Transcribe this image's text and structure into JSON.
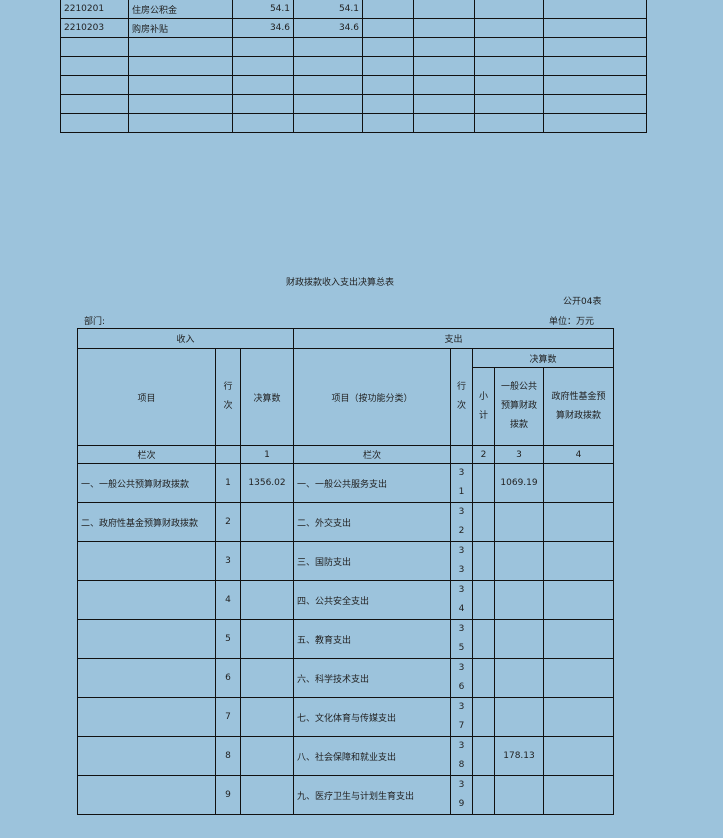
{
  "top_table": {
    "rows": [
      [
        "2210201",
        "住房公积金",
        "54.1",
        "54.1",
        "",
        "",
        "",
        ""
      ],
      [
        "2210203",
        "购房补贴",
        "34.6",
        "34.6",
        "",
        "",
        "",
        ""
      ],
      [
        "",
        "",
        "",
        "",
        "",
        "",
        "",
        ""
      ],
      [
        "",
        "",
        "",
        "",
        "",
        "",
        "",
        ""
      ],
      [
        "",
        "",
        "",
        "",
        "",
        "",
        "",
        ""
      ],
      [
        "",
        "",
        "",
        "",
        "",
        "",
        "",
        ""
      ],
      [
        "",
        "",
        "",
        "",
        "",
        "",
        "",
        ""
      ]
    ]
  },
  "report": {
    "title": "财政拨款收入支出决算总表",
    "form_no": "公开04表",
    "dept_label": "部门:",
    "unit_label": "单位：万元",
    "income_header": "收入",
    "expense_header": "支出",
    "item": "项目",
    "row_no": "行次",
    "final_amount": "决算数",
    "item_by_function": "项目（按功能分类）",
    "final_amount_group": "决算数",
    "subtotal": "小计",
    "general_budget": "一般公共预算财政拨款",
    "gov_fund": "政府性基金预算财政拨款",
    "col_label": "栏次",
    "col_1": "1",
    "col_2": "2",
    "col_3": "3",
    "col_4": "4",
    "rows": [
      {
        "income_item": "一、一般公共预算财政拨款",
        "row": "1",
        "amount": "1356.02",
        "expense_item": "一、一般公共服务支出",
        "exp_row": "31",
        "subtotal": "",
        "general": "1069.19",
        "fund": ""
      },
      {
        "income_item": "二、政府性基金预算财政拨款",
        "row": "2",
        "amount": "",
        "expense_item": "二、外交支出",
        "exp_row": "32",
        "subtotal": "",
        "general": "",
        "fund": ""
      },
      {
        "income_item": "",
        "row": "3",
        "amount": "",
        "expense_item": "三、国防支出",
        "exp_row": "33",
        "subtotal": "",
        "general": "",
        "fund": ""
      },
      {
        "income_item": "",
        "row": "4",
        "amount": "",
        "expense_item": "四、公共安全支出",
        "exp_row": "34",
        "subtotal": "",
        "general": "",
        "fund": ""
      },
      {
        "income_item": "",
        "row": "5",
        "amount": "",
        "expense_item": "五、教育支出",
        "exp_row": "35",
        "subtotal": "",
        "general": "",
        "fund": ""
      },
      {
        "income_item": "",
        "row": "6",
        "amount": "",
        "expense_item": "六、科学技术支出",
        "exp_row": "36",
        "subtotal": "",
        "general": "",
        "fund": ""
      },
      {
        "income_item": "",
        "row": "7",
        "amount": "",
        "expense_item": "七、文化体育与传媒支出",
        "exp_row": "37",
        "subtotal": "",
        "general": "",
        "fund": ""
      },
      {
        "income_item": "",
        "row": "8",
        "amount": "",
        "expense_item": "八、社会保障和就业支出",
        "exp_row": "38",
        "subtotal": "",
        "general": "178.13",
        "fund": ""
      },
      {
        "income_item": "",
        "row": "9",
        "amount": "",
        "expense_item": "九、医疗卫生与计划生育支出",
        "exp_row": "39",
        "subtotal": "",
        "general": "",
        "fund": ""
      }
    ]
  }
}
